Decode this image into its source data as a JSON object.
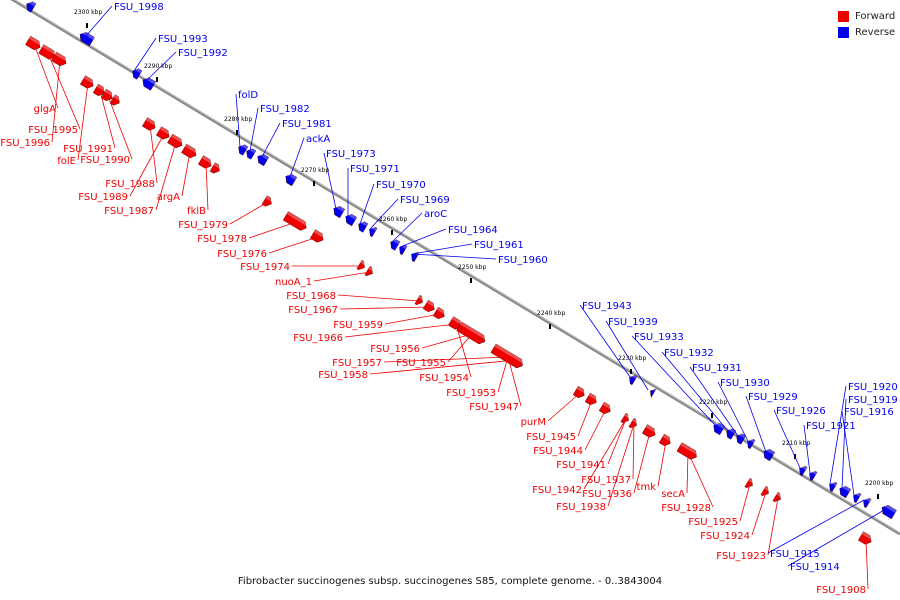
{
  "legend": {
    "forward_label": "Forward",
    "reverse_label": "Reverse",
    "forward_color": "#ee0000",
    "reverse_color": "#0000ee"
  },
  "caption": "Fibrobacter succinogenes subsp. succinogenes S85, complete genome. - 0..3843004",
  "ticks": [
    "2300 kbp",
    "2290 kbp",
    "2280 kbp",
    "2270 kbp",
    "2260 kbp",
    "2250 kbp",
    "2240 kbp",
    "2230 kbp",
    "2220 kbp",
    "2210 kbp",
    "2200 kbp"
  ],
  "forward_genes": [
    "glgA",
    "FSU_1995",
    "FSU_1996",
    "folE",
    "FSU_1991",
    "FSU_1990",
    "FSU_1988",
    "FSU_1989",
    "FSU_1987",
    "argA",
    "fklB",
    "FSU_1979",
    "FSU_1978",
    "FSU_1976",
    "FSU_1974",
    "nuoA_1",
    "FSU_1968",
    "FSU_1967",
    "FSU_1959",
    "FSU_1966",
    "FSU_1956",
    "FSU_1957",
    "FSU_1958",
    "FSU_1955",
    "FSU_1954",
    "FSU_1953",
    "FSU_1947",
    "purM",
    "FSU_1945",
    "FSU_1944",
    "FSU_1941",
    "FSU_1937",
    "FSU_1942",
    "FSU_1936",
    "FSU_1938",
    "tmk",
    "secA",
    "FSU_1928",
    "FSU_1925",
    "FSU_1924",
    "FSU_1923",
    "FSU_1908"
  ],
  "reverse_genes": [
    "FSU_1998",
    "FSU_1993",
    "FSU_1992",
    "folD",
    "FSU_1982",
    "FSU_1981",
    "ackA",
    "FSU_1973",
    "FSU_1971",
    "FSU_1970",
    "FSU_1969",
    "aroC",
    "FSU_1964",
    "FSU_1961",
    "FSU_1960",
    "FSU_1943",
    "FSU_1939",
    "FSU_1933",
    "FSU_1932",
    "FSU_1931",
    "FSU_1930",
    "FSU_1929",
    "FSU_1926",
    "FSU_1921",
    "FSU_1920",
    "FSU_1919",
    "FSU_1916",
    "FSU_1915",
    "FSU_1914"
  ]
}
